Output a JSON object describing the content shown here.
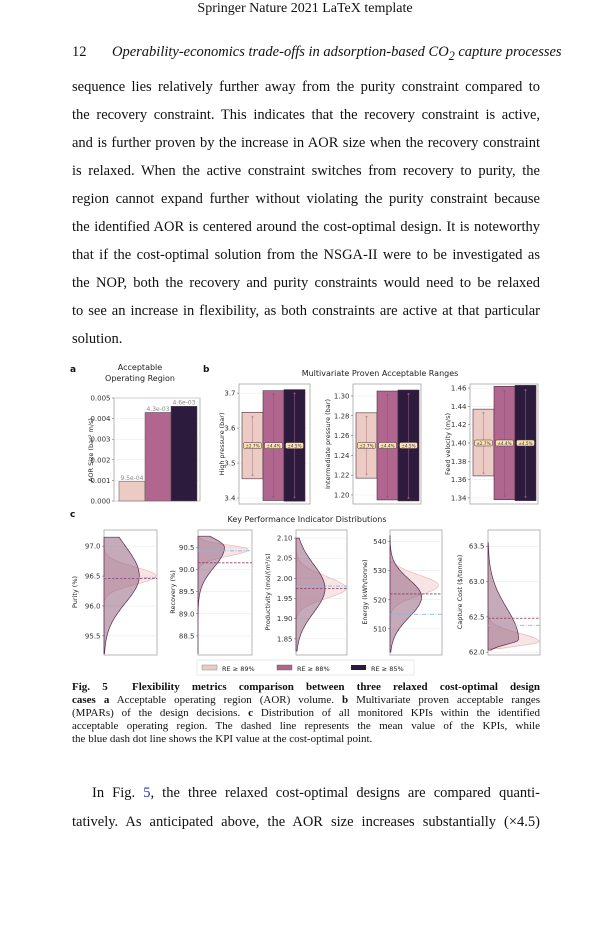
{
  "header": {
    "prefix": "Springer Nature 2021",
    "logo": "LaTeX",
    "suffix": "template"
  },
  "running_head": {
    "page_number": "12",
    "title_before": "Operability-economics trade-offs in adsorption-based CO",
    "subscript": "2",
    "title_after": " capture processes"
  },
  "paragraph1": [
    "sequence lies relatively further away from the purity constraint compared to",
    "the recovery constraint. This indicates that the recovery constraint is active,",
    "and is further proven by the increase in AOR size when the recovery constraint",
    "is relaxed. When the active constraint switches from recovery to purity, the",
    "region cannot expand further without violating the purity constraint because",
    "the identified AOR is centered around the cost-optimal design. It is noteworthy",
    "that if the cost-optimal solution from the NSGA-II were to be investigated as",
    "the NOP, both the recovery and purity constraints would need to be relaxed",
    "to see an increase in flexibility, as both constraints are active at that particular",
    "solution."
  ],
  "figure": {
    "panel_labels": {
      "a": "a",
      "b": "b",
      "c": "c"
    },
    "caption": {
      "label": "Fig. 5",
      "title_l1": "Flexibility metrics comparison between three relaxed cost-optimal design",
      "title_l2": "cases",
      "a": "a",
      "a_text": "Acceptable operating region (AOR) volume.",
      "b": "b",
      "b_text_l2": "Multivariate proven acceptable ranges",
      "b_text_l3": "(MPARs) of the design decisions.",
      "c": "c",
      "c_text_l3": "Distribution of all monitored KPIs within the identified",
      "text_l4": "acceptable operating region. The dashed line represents the mean value of the KPIs, while",
      "text_l5": "the blue dash dot line shows the KPI value at the cost-optimal point."
    }
  },
  "paragraph2": {
    "l1_before": "In Fig. ",
    "l1_link": "5",
    "l1_after": ", the three relaxed cost-optimal designs are compared quanti-",
    "l2": "tatively. As anticipated above, the AOR size increases substantially (×4.5)"
  },
  "colors": {
    "re89": "#eccbc4",
    "re88": "#b0668f",
    "re85": "#2c1b3d",
    "mean_line": "#8b3a62",
    "cost_optimal_line": "#86b6e2",
    "link": "#2a2ad0"
  },
  "chart_data": [
    {
      "id": "a",
      "type": "bar",
      "title_lines": [
        "Acceptable",
        "Operating Region"
      ],
      "ylabel": "AOR Size (bar² m/s)",
      "ylim": [
        0,
        0.005
      ],
      "yticks": [
        "0.000",
        "0.001",
        "0.002",
        "0.003",
        "0.004",
        "0.005"
      ],
      "categories": [
        "RE ≥ 89%",
        "RE ≥ 88%",
        "RE ≥ 85%"
      ],
      "values": [
        0.00095,
        0.0043,
        0.0046
      ],
      "value_labels": [
        "9.5e-04",
        "4.3e-03",
        "4.6e-03"
      ],
      "grid": true
    },
    {
      "id": "b",
      "type": "range",
      "title": "Multivariate Proven Acceptable Ranges",
      "categories": [
        "RE ≥ 89%",
        "RE ≥ 88%",
        "RE ≥ 85%"
      ],
      "subplots": [
        {
          "ylabel": "High pressure (bar)",
          "ylim": [
            3.383,
            3.726
          ],
          "yticks": [
            "3.4",
            "3.5",
            "3.6",
            "3.7"
          ],
          "ranges": [
            [
              3.455,
              3.645
            ],
            [
              3.393,
              3.707
            ],
            [
              3.391,
              3.71
            ]
          ],
          "whiskers": [
            [
              3.465,
              3.632
            ],
            [
              3.404,
              3.697
            ],
            [
              3.402,
              3.699
            ]
          ],
          "center": 3.55,
          "labels": [
            "±2.7%",
            "±4.4%",
            "±4.5%"
          ]
        },
        {
          "ylabel": "Intermediate pressure (bar)",
          "ylim": [
            1.1909,
            1.3121
          ],
          "yticks": [
            "1.20",
            "1.22",
            "1.24",
            "1.26",
            "1.28",
            "1.30"
          ],
          "ranges": [
            [
              1.217,
              1.283
            ],
            [
              1.195,
              1.305
            ],
            [
              1.194,
              1.306
            ]
          ],
          "whiskers": [
            [
              1.221,
              1.279
            ],
            [
              1.198,
              1.301
            ],
            [
              1.197,
              1.302
            ]
          ],
          "center": 1.25,
          "labels": [
            "±2.7%",
            "±4.4%",
            "±4.5%"
          ]
        },
        {
          "ylabel": "Feed velocity (m/s)",
          "ylim": [
            1.3333,
            1.4645
          ],
          "yticks": [
            "1.34",
            "1.36",
            "1.38",
            "1.40",
            "1.42",
            "1.44",
            "1.46"
          ],
          "ranges": [
            [
              1.364,
              1.437
            ],
            [
              1.338,
              1.462
            ],
            [
              1.337,
              1.463
            ]
          ],
          "whiskers": [
            [
              1.367,
              1.433
            ],
            [
              1.342,
              1.457
            ],
            [
              1.341,
              1.458
            ]
          ],
          "center": 1.4,
          "labels": [
            "±2.7%",
            "±4.4%",
            "±4.5%"
          ]
        }
      ]
    },
    {
      "id": "c",
      "type": "distribution",
      "title": "Key Performance Indicator Distributions",
      "legend": {
        "placement": "bottom-center",
        "entries": [
          "RE ≥ 89%",
          "RE ≥ 88%",
          "RE ≥ 85%"
        ]
      },
      "subplots": [
        {
          "ylabel": "Purity  (%)",
          "ylim": [
            95.18,
            97.27
          ],
          "yticks": [
            "95.5",
            "96.0",
            "96.5",
            "97.0"
          ],
          "wide": {
            "range": [
              95.2,
              97.15
            ],
            "mode": 96.5,
            "sd_below": 0.45,
            "sd_above": 0.5,
            "peak_rel_density": 0.68
          },
          "narrow": {
            "range": [
              96.1,
              96.95
            ],
            "mode": 96.5,
            "sd_below": 0.14,
            "sd_above": 0.15,
            "peak_rel_density": 1.0
          },
          "mean": 96.46,
          "cost_optimal": 96.47
        },
        {
          "ylabel": "Recovery  (%)",
          "ylim": [
            88.07,
            90.89
          ],
          "yticks": [
            "88.5",
            "89.0",
            "89.5",
            "90.0",
            "90.5"
          ],
          "wide": {
            "range": [
              88.1,
              90.75
            ],
            "mode": 90.5,
            "sd_below": 0.45,
            "sd_above": 0.2,
            "peak_rel_density": 0.5
          },
          "narrow": {
            "range": [
              89.9,
              90.75
            ],
            "mode": 90.45,
            "sd_below": 0.15,
            "sd_above": 0.1,
            "peak_rel_density": 0.95
          },
          "mean": 90.15,
          "cost_optimal": 90.42
        },
        {
          "ylabel": "Productivity  (mol/(m³/s)",
          "ylim": [
            1.81,
            2.12
          ],
          "yticks": [
            "1.85",
            "1.90",
            "1.95",
            "2.00",
            "2.05",
            "2.10"
          ],
          "wide": {
            "range": [
              1.82,
              2.1
            ],
            "mode": 1.975,
            "sd_below": 0.06,
            "sd_above": 0.06,
            "peak_rel_density": 0.58
          },
          "narrow": {
            "range": [
              1.9,
              2.07
            ],
            "mode": 1.975,
            "sd_below": 0.025,
            "sd_above": 0.03,
            "peak_rel_density": 1.0
          },
          "mean": 1.975,
          "cost_optimal": 1.981
        },
        {
          "ylabel": "Energy  (kWh/tonne)",
          "ylim": [
            501,
            544
          ],
          "yticks": [
            "510",
            "520",
            "530",
            "540"
          ],
          "wide": {
            "range": [
              502,
              542
            ],
            "mode": 521,
            "sd_below": 7,
            "sd_above": 6,
            "peak_rel_density": 0.62
          },
          "narrow": {
            "range": [
              512,
              533
            ],
            "mode": 525,
            "sd_below": 3.5,
            "sd_above": 3.5,
            "peak_rel_density": 0.95
          },
          "mean": 522,
          "cost_optimal": 515
        },
        {
          "ylabel": "Capture Cost  ($/tonne)",
          "ylim": [
            61.96,
            63.73
          ],
          "yticks": [
            "62.0",
            "62.5",
            "63.0",
            "63.5"
          ],
          "wide": {
            "range": [
              62.03,
              63.55
            ],
            "mode": 62.18,
            "sd_below": 0.07,
            "sd_above": 0.45,
            "peak_rel_density": 0.6
          },
          "narrow": {
            "range": [
              62.05,
              62.55
            ],
            "mode": 62.15,
            "sd_below": 0.06,
            "sd_above": 0.12,
            "peak_rel_density": 1.0
          },
          "mean": 62.48,
          "cost_optimal": 62.38
        }
      ]
    }
  ]
}
